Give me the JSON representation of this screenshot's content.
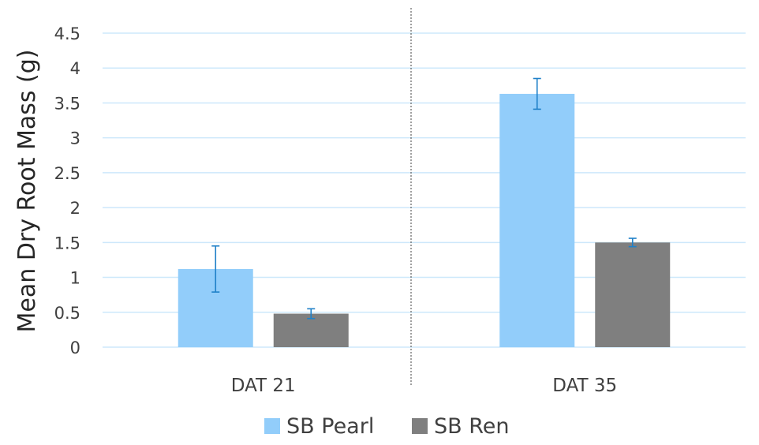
{
  "chart_data": {
    "type": "bar",
    "categories": [
      "DAT 21",
      "DAT 35"
    ],
    "series": [
      {
        "name": "SB Pearl",
        "values": [
          1.12,
          3.63
        ],
        "error": [
          0.33,
          0.22
        ],
        "color": "#92CDFA"
      },
      {
        "name": "SB Ren",
        "values": [
          0.48,
          1.5
        ],
        "error": [
          0.07,
          0.06
        ],
        "color": "#7F7F7F"
      }
    ],
    "title": "",
    "xlabel": "",
    "ylabel": "Mean Dry Root Mass (g)",
    "ylim": [
      0,
      4.5
    ],
    "yticks": [
      "0",
      "0.5",
      "1",
      "1.5",
      "2",
      "2.5",
      "3",
      "3.5",
      "4",
      "4.5"
    ],
    "grid": true,
    "gridline_color": "#CDE8FB",
    "errorbar_color": "#1F80C8",
    "separator_between_categories": true,
    "legend_position": "bottom"
  }
}
